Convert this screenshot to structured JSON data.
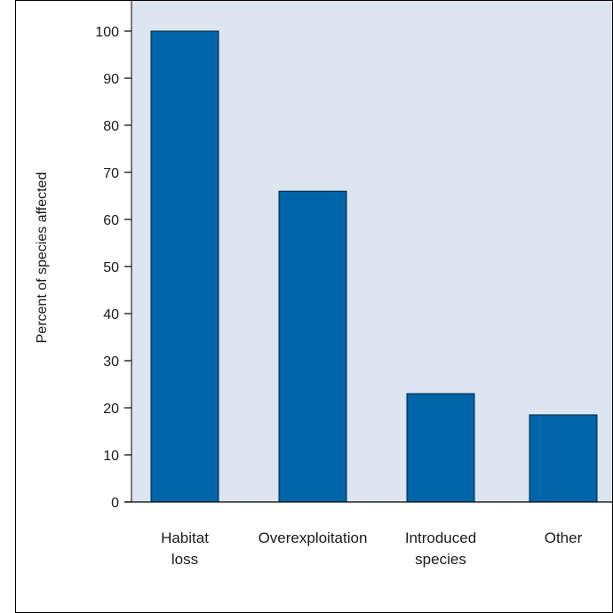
{
  "chart_data": {
    "type": "bar",
    "categories": [
      [
        "Habitat",
        "loss"
      ],
      [
        "Overexploitation"
      ],
      [
        "Introduced",
        "species"
      ],
      [
        "Other"
      ]
    ],
    "values": [
      100,
      66,
      23,
      18.5
    ],
    "ylabel": "Percent of species affected",
    "xlabel": "",
    "ylim": [
      0,
      100
    ],
    "yticks": [
      0,
      10,
      20,
      30,
      40,
      50,
      60,
      70,
      80,
      90,
      100
    ],
    "colors": {
      "bar": "#0065a8",
      "bar_border": "#00243f",
      "plot_background": "#dce5f0",
      "frame": "#000000",
      "page_background": "#ffffff"
    },
    "grid": false
  }
}
